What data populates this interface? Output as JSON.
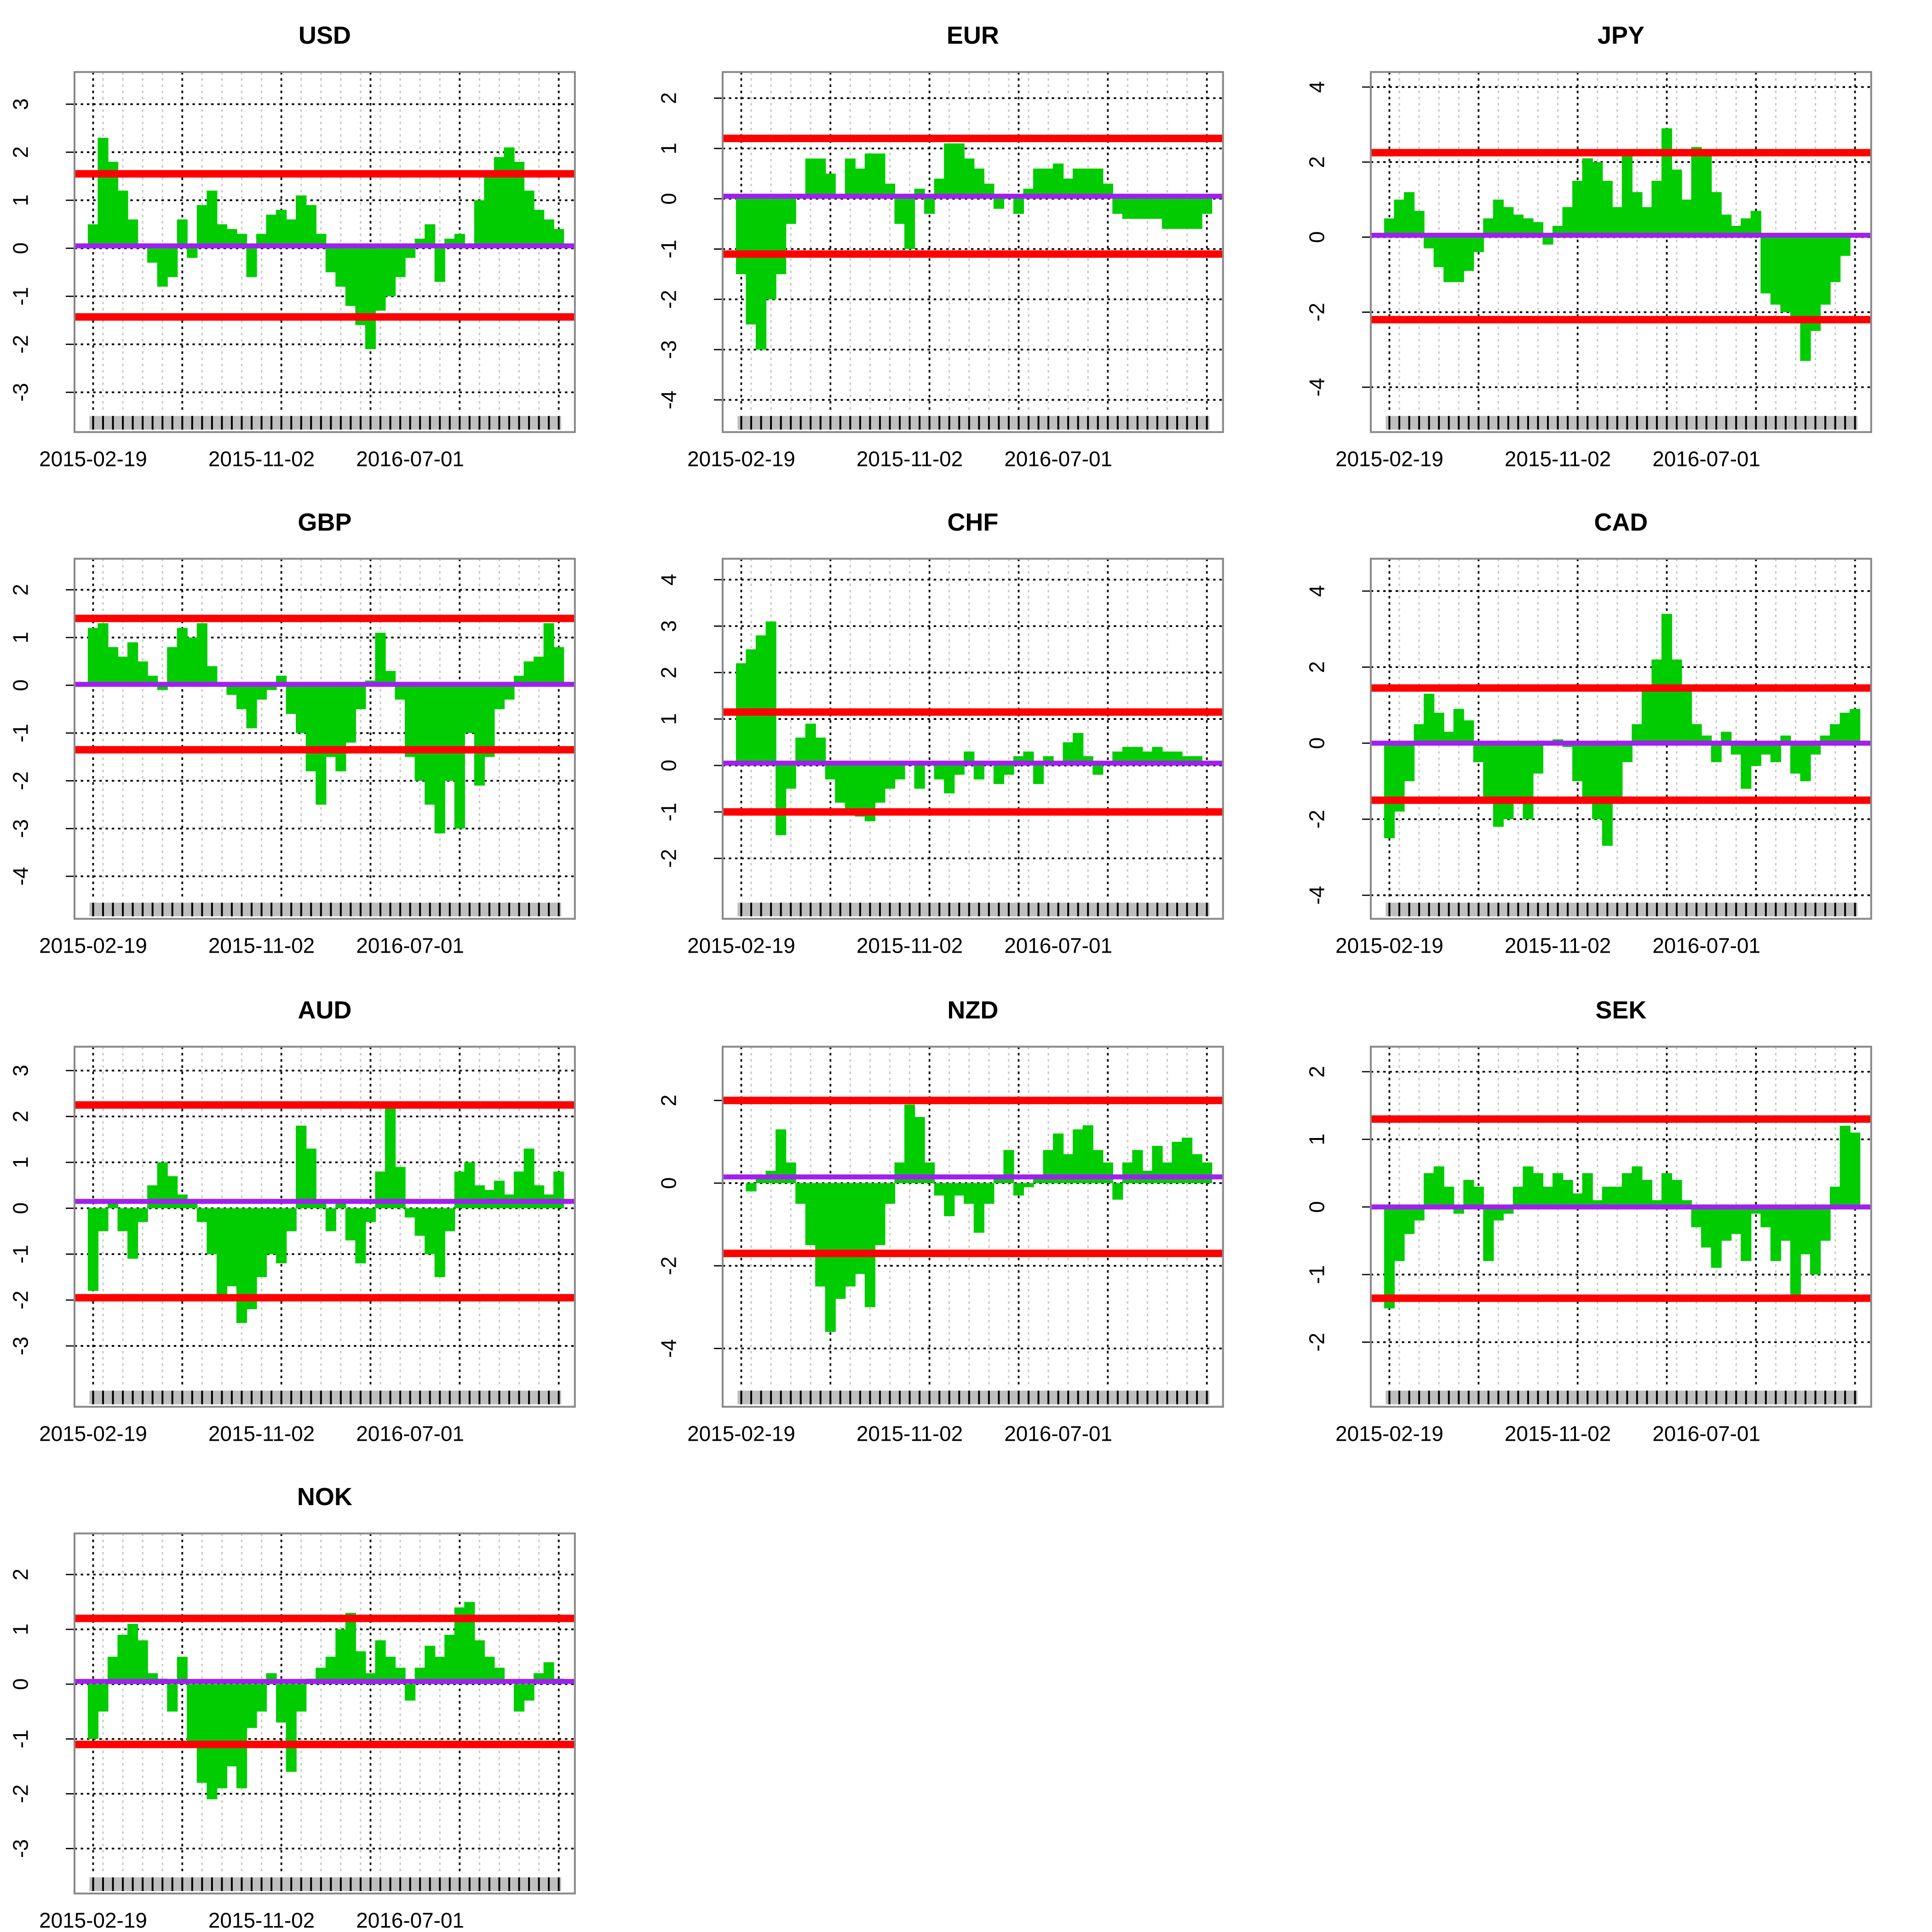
{
  "chart_data": [
    {
      "type": "bar",
      "title": "USD",
      "categories": [
        "2015-02-19",
        null,
        null,
        null,
        null,
        null,
        null,
        null,
        null,
        null,
        null,
        null,
        null,
        null,
        null,
        null,
        null,
        "2015-11-02",
        null,
        null,
        null,
        null,
        null,
        null,
        null,
        null,
        null,
        null,
        null,
        null,
        null,
        null,
        "2016-07-01",
        null,
        null,
        null,
        null,
        null,
        null,
        null,
        null,
        null,
        null,
        null,
        null,
        null,
        null,
        null
      ],
      "values": [
        0.5,
        2.3,
        1.8,
        1.2,
        0.6,
        0.1,
        -0.3,
        -0.8,
        -0.6,
        0.6,
        -0.2,
        0.9,
        1.2,
        0.5,
        0.4,
        0.3,
        -0.6,
        0.3,
        0.7,
        0.8,
        0.6,
        1.1,
        0.9,
        0.3,
        -0.5,
        -0.8,
        -1.2,
        -1.6,
        -2.1,
        -1.3,
        -1.0,
        -0.6,
        -0.2,
        0.2,
        0.5,
        -0.7,
        0.2,
        0.3,
        0.1,
        1.0,
        1.5,
        1.9,
        2.1,
        1.8,
        1.2,
        0.8,
        0.6,
        0.4
      ],
      "upper_band": 1.55,
      "lower_band": -1.43,
      "mean": 0.05,
      "color": "#00cc00",
      "band_color": "#ff0000",
      "mean_color": "#a020f0",
      "ylim": [
        -3.44,
        3.67
      ],
      "yticks": [
        -3,
        -2,
        -1,
        0,
        1,
        2,
        3
      ],
      "grid": true
    },
    {
      "type": "bar",
      "title": "EUR",
      "categories": [
        "2015-02-19",
        null,
        null,
        null,
        null,
        null,
        null,
        null,
        null,
        null,
        null,
        null,
        null,
        null,
        null,
        null,
        null,
        "2015-11-02",
        null,
        null,
        null,
        null,
        null,
        null,
        null,
        null,
        null,
        null,
        null,
        null,
        null,
        null,
        "2016-07-01",
        null,
        null,
        null,
        null,
        null,
        null,
        null,
        null,
        null,
        null,
        null,
        null,
        null,
        null,
        null
      ],
      "values": [
        -1.5,
        -2.5,
        -3.0,
        -2.0,
        -1.5,
        -0.5,
        0,
        0.8,
        0.8,
        0.5,
        0,
        0.8,
        0.6,
        0.9,
        0.9,
        0.3,
        -0.5,
        -1.0,
        0.2,
        -0.3,
        0.4,
        1.1,
        1.1,
        0.8,
        0.6,
        0.3,
        -0.2,
        0.1,
        -0.3,
        0.2,
        0.6,
        0.6,
        0.7,
        0.4,
        0.6,
        0.6,
        0.6,
        0.3,
        -0.3,
        -0.4,
        -0.4,
        -0.4,
        -0.4,
        -0.6,
        -0.6,
        -0.6,
        -0.6,
        -0.3
      ],
      "upper_band": 1.2,
      "lower_band": -1.1,
      "mean": 0.05,
      "color": "#00cc00",
      "band_color": "#ff0000",
      "mean_color": "#a020f0",
      "ylim": [
        -4.27,
        2.52
      ],
      "yticks": [
        -4,
        -3,
        -2,
        -1,
        0,
        1,
        2
      ],
      "grid": true
    },
    {
      "type": "bar",
      "title": "JPY",
      "categories": [
        "2015-02-19",
        null,
        null,
        null,
        null,
        null,
        null,
        null,
        null,
        null,
        null,
        null,
        null,
        null,
        null,
        null,
        null,
        "2015-11-02",
        null,
        null,
        null,
        null,
        null,
        null,
        null,
        null,
        null,
        null,
        null,
        null,
        null,
        null,
        "2016-07-01",
        null,
        null,
        null,
        null,
        null,
        null,
        null,
        null,
        null,
        null,
        null,
        null,
        null,
        null,
        null
      ],
      "values": [
        0.5,
        1.0,
        1.2,
        0.7,
        -0.3,
        -0.8,
        -1.2,
        -1.2,
        -0.9,
        -0.4,
        0.5,
        1.0,
        0.8,
        0.6,
        0.5,
        0.4,
        -0.2,
        0.3,
        0.8,
        1.5,
        2.1,
        2.0,
        1.5,
        0.8,
        2.3,
        1.2,
        0.8,
        1.5,
        2.9,
        1.8,
        1.0,
        2.4,
        2.3,
        1.2,
        0.6,
        0.3,
        0.5,
        0.7,
        -1.5,
        -1.8,
        -2.0,
        -2.3,
        -3.3,
        -2.5,
        -1.8,
        -1.2,
        -0.5,
        0
      ],
      "upper_band": 2.25,
      "lower_band": -2.2,
      "mean": 0.05,
      "color": "#00cc00",
      "band_color": "#ff0000",
      "mean_color": "#a020f0",
      "ylim": [
        -4.7,
        4.4
      ],
      "yticks": [
        -4,
        -2,
        0,
        2,
        4
      ],
      "grid": true
    },
    {
      "type": "bar",
      "title": "GBP",
      "categories": [
        "2015-02-19",
        null,
        null,
        null,
        null,
        null,
        null,
        null,
        null,
        null,
        null,
        null,
        null,
        null,
        null,
        null,
        null,
        "2015-11-02",
        null,
        null,
        null,
        null,
        null,
        null,
        null,
        null,
        null,
        null,
        null,
        null,
        null,
        null,
        "2016-07-01",
        null,
        null,
        null,
        null,
        null,
        null,
        null,
        null,
        null,
        null,
        null,
        null,
        null,
        null,
        null
      ],
      "values": [
        1.2,
        1.3,
        0.8,
        0.6,
        0.9,
        0.5,
        0.2,
        -0.1,
        0.8,
        1.2,
        1.0,
        1.3,
        0.4,
        0,
        -0.2,
        -0.5,
        -0.9,
        -0.3,
        -0.1,
        0.2,
        -0.6,
        -1.0,
        -1.8,
        -2.5,
        -1.5,
        -1.8,
        -1.2,
        -0.5,
        0.1,
        1.1,
        0.3,
        -0.3,
        -1.5,
        -2.0,
        -2.5,
        -3.1,
        -2.0,
        -3.0,
        -1.0,
        -2.1,
        -1.5,
        -0.5,
        -0.3,
        0.2,
        0.5,
        0.6,
        1.3,
        0.8
      ],
      "upper_band": 1.4,
      "lower_band": -1.35,
      "mean": 0.02,
      "color": "#00cc00",
      "band_color": "#ff0000",
      "mean_color": "#a020f0",
      "ylim": [
        -4.5,
        2.65
      ],
      "yticks": [
        -4,
        -3,
        -2,
        -1,
        0,
        1,
        2
      ],
      "grid": true
    },
    {
      "type": "bar",
      "title": "CHF",
      "categories": [
        "2015-02-19",
        null,
        null,
        null,
        null,
        null,
        null,
        null,
        null,
        null,
        null,
        null,
        null,
        null,
        null,
        null,
        null,
        "2015-11-02",
        null,
        null,
        null,
        null,
        null,
        null,
        null,
        null,
        null,
        null,
        null,
        null,
        null,
        null,
        "2016-07-01",
        null,
        null,
        null,
        null,
        null,
        null,
        null,
        null,
        null,
        null,
        null,
        null,
        null,
        null,
        null
      ],
      "values": [
        2.2,
        2.5,
        2.8,
        3.1,
        -1.5,
        -0.5,
        0.6,
        0.9,
        0.6,
        -0.3,
        -0.8,
        -1.0,
        -1.1,
        -1.2,
        -0.8,
        -0.5,
        -0.3,
        0,
        -0.5,
        0.1,
        -0.3,
        -0.6,
        -0.2,
        0.3,
        -0.3,
        0.1,
        -0.4,
        -0.2,
        0.2,
        0.3,
        -0.4,
        0.2,
        0.1,
        0.5,
        0.7,
        0.2,
        -0.2,
        0.1,
        0.3,
        0.4,
        0.4,
        0.3,
        0.4,
        0.3,
        0.3,
        0.2,
        0.2,
        0.1
      ],
      "upper_band": 1.15,
      "lower_band": -1.0,
      "mean": 0.05,
      "color": "#00cc00",
      "band_color": "#ff0000",
      "mean_color": "#a020f0",
      "ylim": [
        -2.9,
        4.45
      ],
      "yticks": [
        -2,
        -1,
        0,
        1,
        2,
        3,
        4
      ],
      "grid": true
    },
    {
      "type": "bar",
      "title": "CAD",
      "categories": [
        "2015-02-19",
        null,
        null,
        null,
        null,
        null,
        null,
        null,
        null,
        null,
        null,
        null,
        null,
        null,
        null,
        null,
        null,
        "2015-11-02",
        null,
        null,
        null,
        null,
        null,
        null,
        null,
        null,
        null,
        null,
        null,
        null,
        null,
        null,
        "2016-07-01",
        null,
        null,
        null,
        null,
        null,
        null,
        null,
        null,
        null,
        null,
        null,
        null,
        null,
        null,
        null
      ],
      "values": [
        -2.5,
        -1.8,
        -1.0,
        0.5,
        1.3,
        0.8,
        0.3,
        0.9,
        0.6,
        -0.5,
        -1.5,
        -2.2,
        -2.0,
        -1.5,
        -2.0,
        -0.8,
        0,
        0.1,
        -0.1,
        -1.0,
        -1.5,
        -2.0,
        -2.7,
        -1.5,
        -0.5,
        0.5,
        1.5,
        2.2,
        3.4,
        2.2,
        1.5,
        0.5,
        0.2,
        -0.5,
        0.3,
        -0.3,
        -1.2,
        -0.6,
        -0.3,
        -0.5,
        0.2,
        -0.8,
        -1.0,
        -0.3,
        0.2,
        0.5,
        0.8,
        0.9
      ],
      "upper_band": 1.45,
      "lower_band": -1.5,
      "mean": 0,
      "color": "#00cc00",
      "band_color": "#ff0000",
      "mean_color": "#a020f0",
      "ylim": [
        -4.13,
        4.85
      ],
      "yticks": [
        -4,
        -2,
        0,
        2,
        4
      ],
      "grid": true
    },
    {
      "type": "bar",
      "title": "AUD",
      "categories": [
        "2015-02-19",
        null,
        null,
        null,
        null,
        null,
        null,
        null,
        null,
        null,
        null,
        null,
        null,
        null,
        null,
        null,
        null,
        "2015-11-02",
        null,
        null,
        null,
        null,
        null,
        null,
        null,
        null,
        null,
        null,
        null,
        null,
        null,
        null,
        "2016-07-01",
        null,
        null,
        null,
        null,
        null,
        null,
        null,
        null,
        null,
        null,
        null,
        null,
        null,
        null,
        null
      ],
      "values": [
        -1.8,
        -0.5,
        0.2,
        -0.5,
        -1.1,
        -0.3,
        0.5,
        1.0,
        0.7,
        0.3,
        0.2,
        -0.3,
        -1.0,
        -2.0,
        -1.7,
        -2.5,
        -2.2,
        -1.5,
        -1.0,
        -1.2,
        -0.5,
        1.8,
        1.3,
        0.2,
        -0.5,
        0.2,
        -0.7,
        -1.2,
        -0.3,
        0.8,
        2.2,
        0.9,
        -0.2,
        -0.6,
        -1.0,
        -1.5,
        -0.5,
        0.8,
        1.0,
        0.5,
        0.4,
        0.6,
        0.3,
        0.8,
        1.3,
        0.5,
        0.3,
        0.8
      ],
      "upper_band": 2.25,
      "lower_band": -1.95,
      "mean": 0.15,
      "color": "#00cc00",
      "band_color": "#ff0000",
      "mean_color": "#a020f0",
      "ylim": [
        -3.92,
        3.52
      ],
      "yticks": [
        -3,
        -2,
        -1,
        0,
        1,
        2,
        3
      ],
      "grid": true
    },
    {
      "type": "bar",
      "title": "NZD",
      "categories": [
        "2015-02-19",
        null,
        null,
        null,
        null,
        null,
        null,
        null,
        null,
        null,
        null,
        null,
        null,
        null,
        null,
        null,
        null,
        "2015-11-02",
        null,
        null,
        null,
        null,
        null,
        null,
        null,
        null,
        null,
        null,
        null,
        null,
        null,
        null,
        "2016-07-01",
        null,
        null,
        null,
        null,
        null,
        null,
        null,
        null,
        null,
        null,
        null,
        null,
        null,
        null,
        null
      ],
      "values": [
        0,
        -0.2,
        0.1,
        0.3,
        1.3,
        0.5,
        -0.5,
        -1.5,
        -2.5,
        -3.6,
        -2.8,
        -2.5,
        -2.2,
        -3.0,
        -1.5,
        -0.5,
        0.5,
        1.9,
        1.6,
        0.5,
        -0.3,
        -0.8,
        -0.3,
        -0.5,
        -1.2,
        -0.5,
        0.2,
        0.8,
        -0.3,
        -0.1,
        0.2,
        0.8,
        1.2,
        0.7,
        1.3,
        1.4,
        0.8,
        0.5,
        -0.4,
        0.5,
        0.8,
        0.3,
        0.9,
        0.5,
        1.0,
        1.1,
        0.7,
        0.5
      ],
      "upper_band": 2.0,
      "lower_band": -1.7,
      "mean": 0.15,
      "color": "#00cc00",
      "band_color": "#ff0000",
      "mean_color": "#a020f0",
      "ylim": [
        -4.96,
        3.3
      ],
      "yticks": [
        -4,
        -2,
        0,
        2
      ],
      "grid": true
    },
    {
      "type": "bar",
      "title": "SEK",
      "categories": [
        "2015-02-19",
        null,
        null,
        null,
        null,
        null,
        null,
        null,
        null,
        null,
        null,
        null,
        null,
        null,
        null,
        null,
        null,
        "2015-11-02",
        null,
        null,
        null,
        null,
        null,
        null,
        null,
        null,
        null,
        null,
        null,
        null,
        null,
        null,
        "2016-07-01",
        null,
        null,
        null,
        null,
        null,
        null,
        null,
        null,
        null,
        null,
        null,
        null,
        null,
        null,
        null
      ],
      "values": [
        -1.5,
        -0.8,
        -0.4,
        -0.2,
        0.5,
        0.6,
        0.3,
        -0.1,
        0.4,
        0.3,
        -0.8,
        -0.2,
        -0.1,
        0.3,
        0.6,
        0.5,
        0.3,
        0.5,
        0.4,
        0.2,
        0.5,
        0.1,
        0.3,
        0.3,
        0.5,
        0.6,
        0.4,
        0.1,
        0.5,
        0.4,
        0.1,
        -0.3,
        -0.6,
        -0.9,
        -0.5,
        -0.4,
        -0.8,
        -0.1,
        -0.3,
        -0.8,
        -0.5,
        -1.3,
        -0.7,
        -1.0,
        -0.5,
        0.3,
        1.2,
        1.1
      ],
      "upper_band": 1.3,
      "lower_band": -1.35,
      "mean": 0,
      "color": "#00cc00",
      "band_color": "#ff0000",
      "mean_color": "#a020f0",
      "ylim": [
        -2.68,
        2.37
      ],
      "yticks": [
        -2,
        -1,
        0,
        1,
        2
      ],
      "grid": true
    },
    {
      "type": "bar",
      "title": "NOK",
      "categories": [
        "2015-02-19",
        null,
        null,
        null,
        null,
        null,
        null,
        null,
        null,
        null,
        null,
        null,
        null,
        null,
        null,
        null,
        null,
        "2015-11-02",
        null,
        null,
        null,
        null,
        null,
        null,
        null,
        null,
        null,
        null,
        null,
        null,
        null,
        null,
        "2016-07-01",
        null,
        null,
        null,
        null,
        null,
        null,
        null,
        null,
        null,
        null,
        null,
        null,
        null,
        null,
        null
      ],
      "values": [
        -1.0,
        -0.5,
        0.5,
        0.9,
        1.1,
        0.8,
        0.2,
        0.1,
        -0.5,
        0.5,
        -1.1,
        -1.8,
        -2.1,
        -1.9,
        -1.5,
        -1.9,
        -0.8,
        -0.5,
        0.2,
        -0.7,
        -1.6,
        -0.5,
        0.1,
        0.3,
        0.5,
        1.0,
        1.3,
        0.6,
        0.2,
        0.8,
        0.5,
        0.3,
        -0.3,
        0.3,
        0.7,
        0.5,
        0.9,
        1.4,
        1.5,
        0.8,
        0.5,
        0.3,
        0,
        -0.5,
        -0.3,
        0.2,
        0.4,
        0.1
      ],
      "upper_band": 1.2,
      "lower_band": -1.1,
      "mean": 0.05,
      "color": "#00cc00",
      "band_color": "#ff0000",
      "mean_color": "#a020f0",
      "ylim": [
        -3.48,
        2.75
      ],
      "yticks": [
        -3,
        -2,
        -1,
        0,
        1,
        2
      ],
      "grid": true
    }
  ]
}
